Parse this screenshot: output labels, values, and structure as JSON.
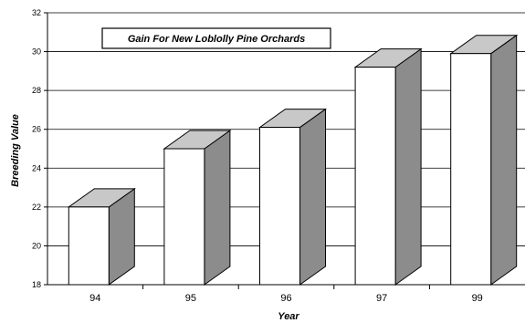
{
  "chart_data": {
    "type": "bar",
    "title": "Gain For New Loblolly Pine Orchards",
    "xlabel": "Year",
    "ylabel": "Breeding Value",
    "categories": [
      "94",
      "95",
      "96",
      "97",
      "99"
    ],
    "values": [
      22,
      25,
      26.1,
      29.2,
      29.9
    ],
    "ylim": [
      18,
      32
    ],
    "yticks": [
      18,
      20,
      22,
      24,
      26,
      28,
      30,
      32
    ],
    "grid": true,
    "style": "3d",
    "colors": {
      "bar_front": "#ffffff",
      "bar_top": "#c8c8c8",
      "bar_side": "#8c8c8c",
      "grid": "#000000"
    }
  }
}
